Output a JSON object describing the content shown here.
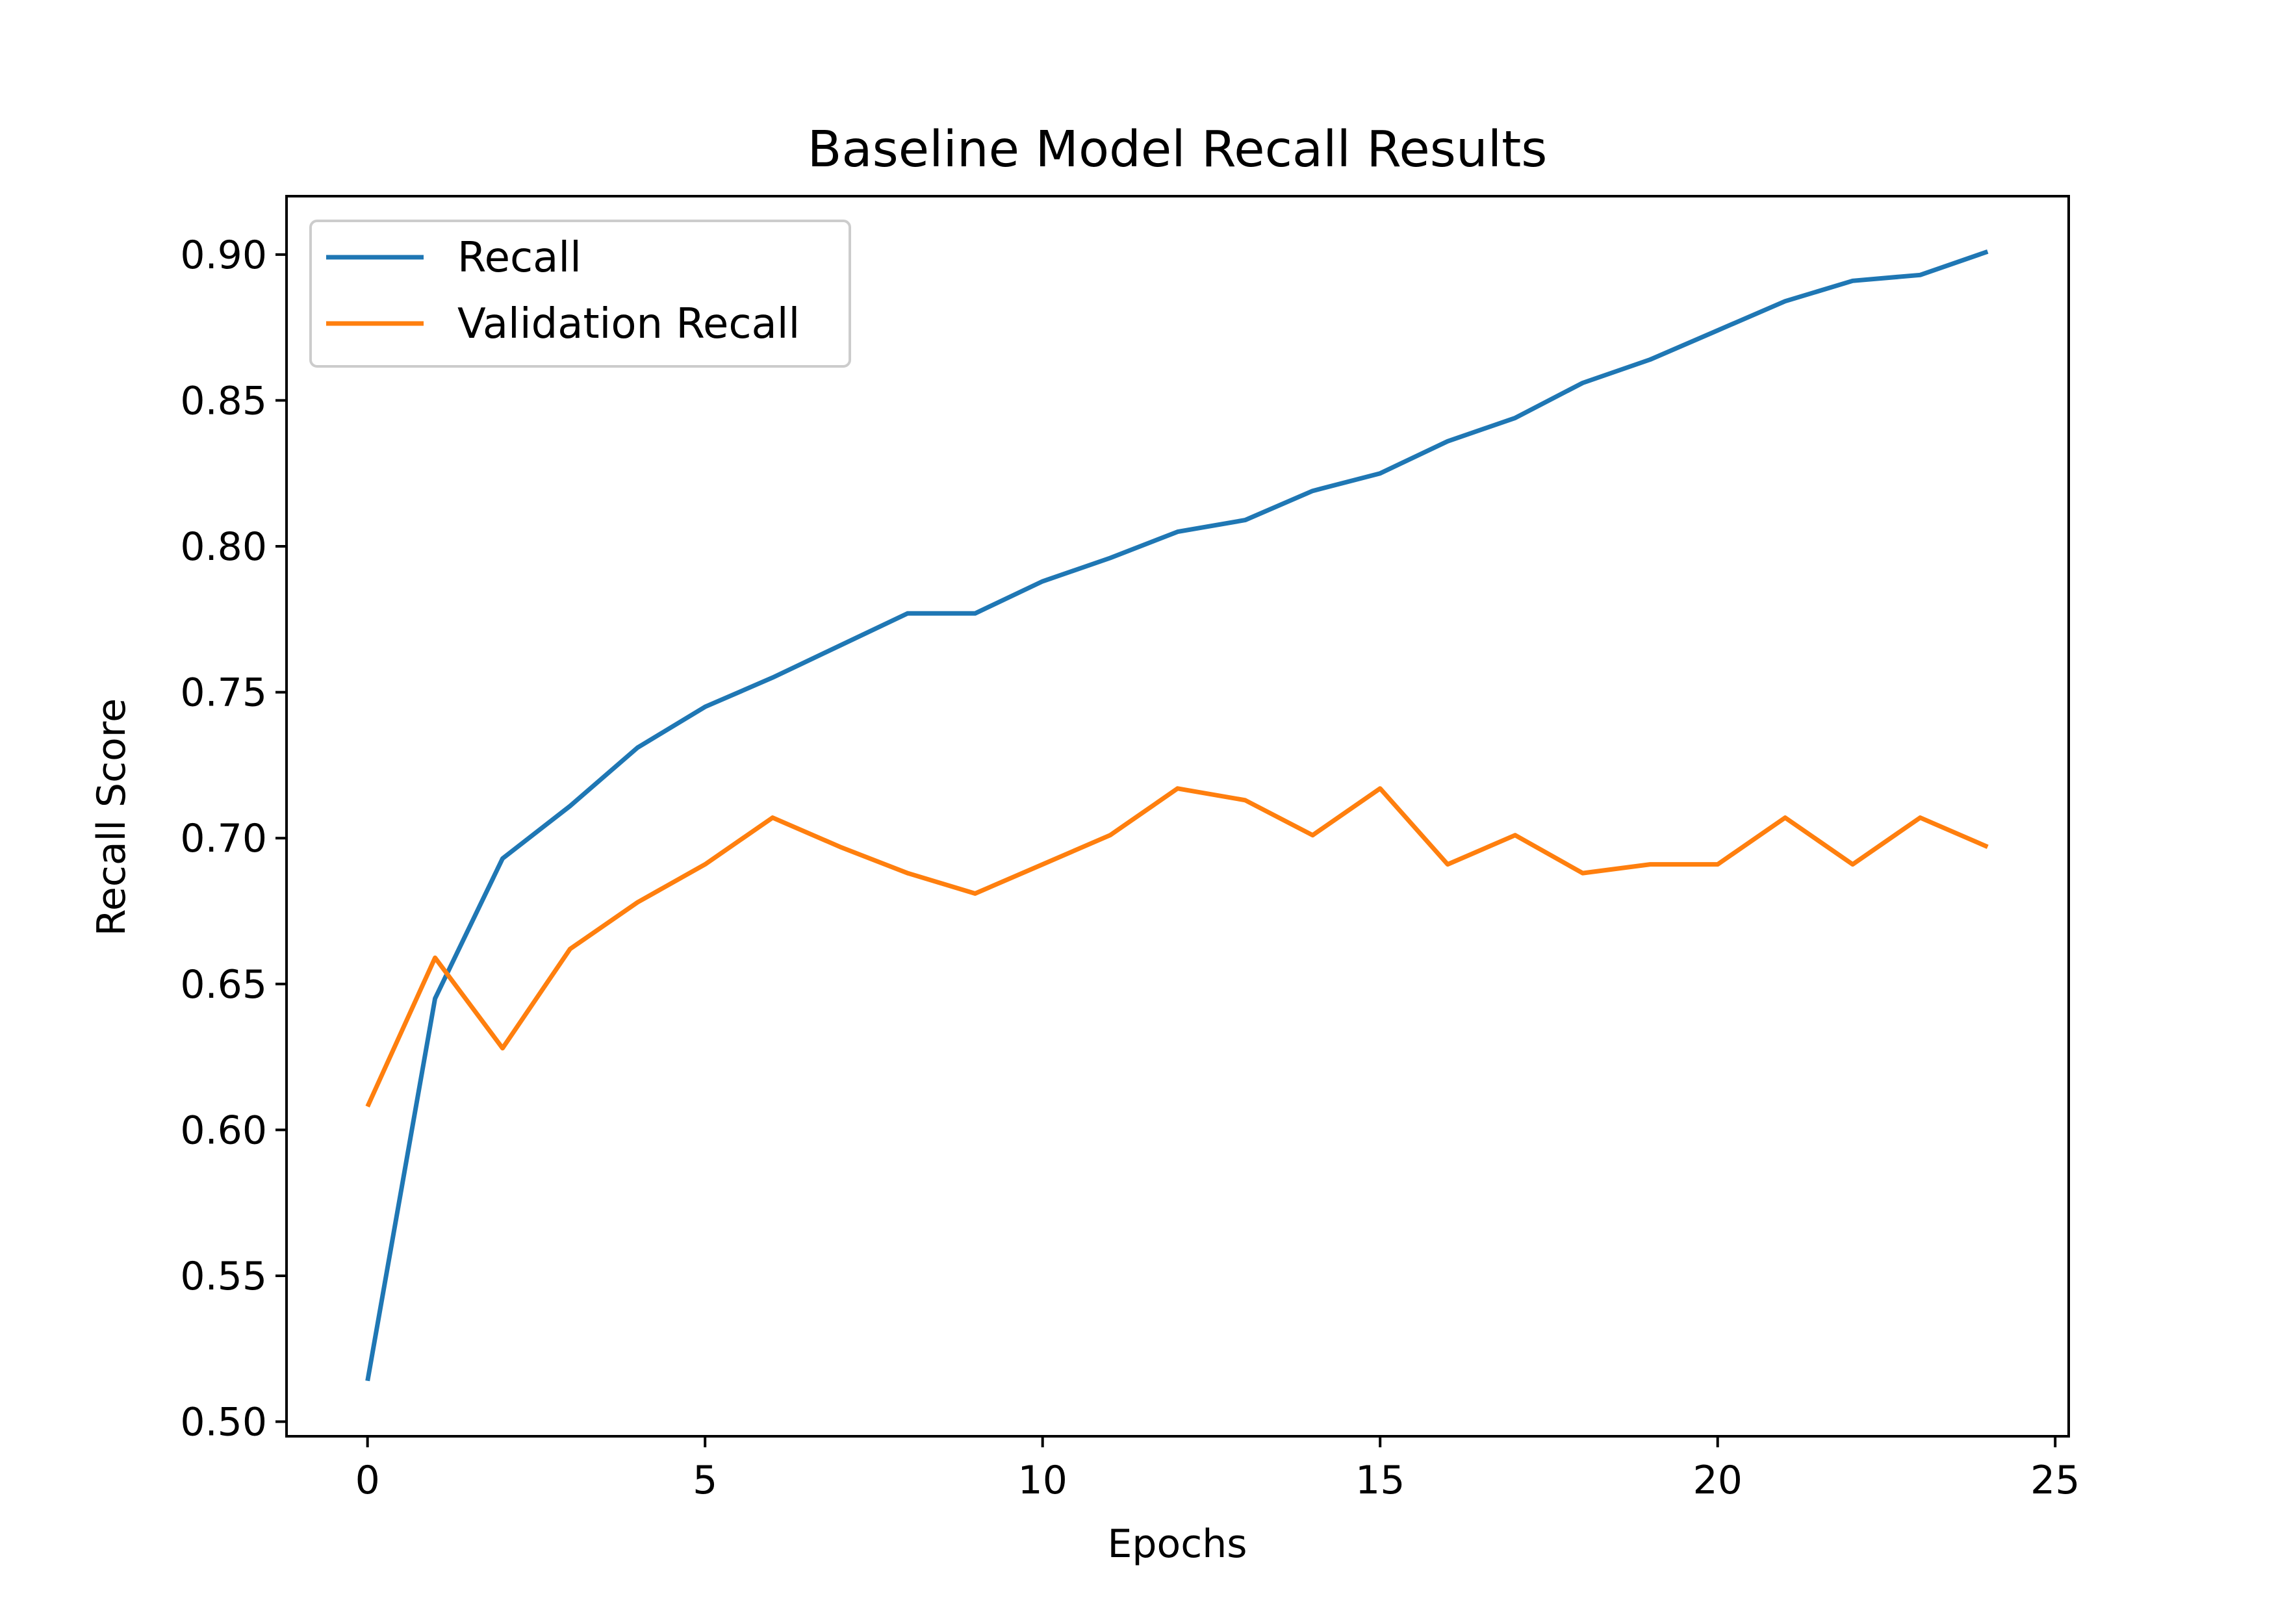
{
  "chart_data": {
    "type": "line",
    "title": "Baseline Model Recall Results",
    "xlabel": "Epochs",
    "ylabel": "Recall Score",
    "xlim": [
      -1.2,
      25.2
    ],
    "ylim": [
      0.495,
      0.92
    ],
    "xticks": [
      0,
      5,
      10,
      15,
      20,
      25
    ],
    "yticks": [
      0.5,
      0.55,
      0.6,
      0.65,
      0.7,
      0.75,
      0.8,
      0.85,
      0.9
    ],
    "x": [
      0,
      1,
      2,
      3,
      4,
      5,
      6,
      7,
      8,
      9,
      10,
      11,
      12,
      13,
      14,
      15,
      16,
      17,
      18,
      19,
      20,
      21,
      22,
      23,
      24
    ],
    "series": [
      {
        "name": "Recall",
        "color": "#1f77b4",
        "values": [
          0.514,
          0.645,
          0.693,
          0.711,
          0.731,
          0.745,
          0.755,
          0.766,
          0.777,
          0.777,
          0.788,
          0.796,
          0.805,
          0.809,
          0.819,
          0.825,
          0.836,
          0.844,
          0.856,
          0.864,
          0.874,
          0.884,
          0.891,
          0.893,
          0.901
        ]
      },
      {
        "name": "Validation Recall",
        "color": "#ff7f0e",
        "values": [
          0.608,
          0.659,
          0.628,
          0.662,
          0.678,
          0.691,
          0.707,
          0.697,
          0.688,
          0.681,
          0.691,
          0.701,
          0.717,
          0.713,
          0.701,
          0.717,
          0.691,
          0.701,
          0.688,
          0.691,
          0.691,
          0.707,
          0.691,
          0.707,
          0.697
        ]
      }
    ],
    "legend": "top-left",
    "grid": false
  }
}
